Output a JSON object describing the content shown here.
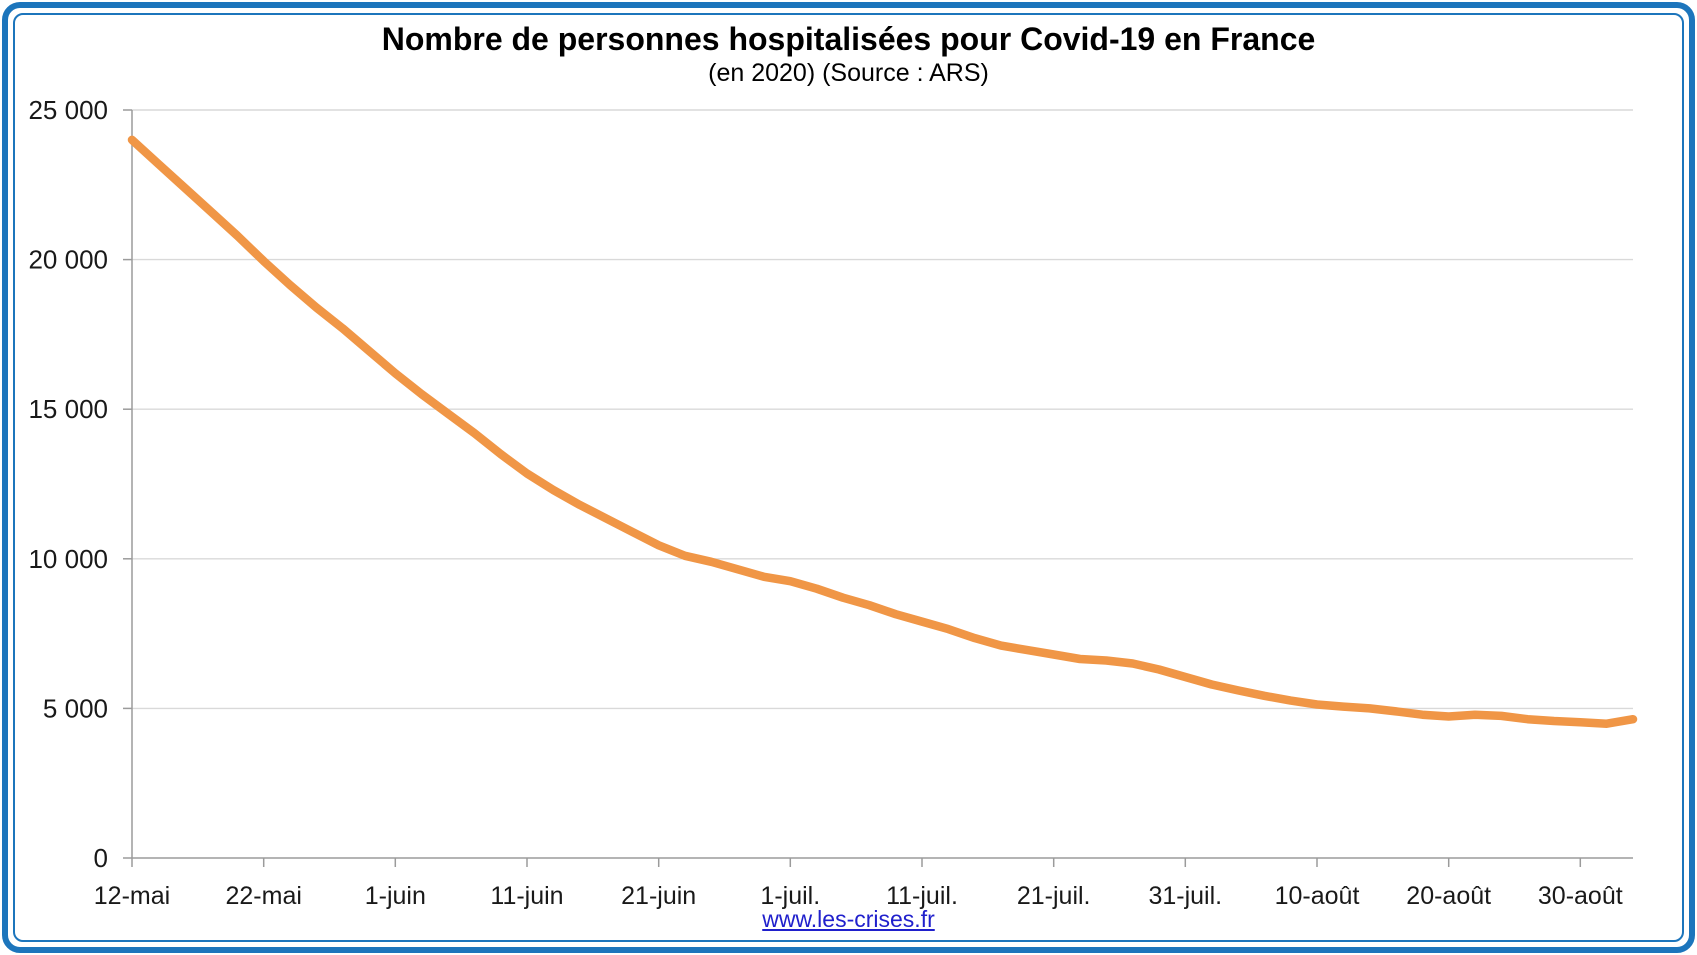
{
  "frame": {
    "border_color": "#1C75BC",
    "background": "#FFFFFF"
  },
  "header": {
    "title": "Nombre de personnes hospitalisées pour Covid-19 en France",
    "subtitle": "(en 2020) (Source : ARS)"
  },
  "footer": {
    "link_text": "www.les-crises.fr",
    "link_color": "#2020CC"
  },
  "chart_data": {
    "type": "line",
    "title": "Nombre de personnes hospitalisées pour Covid-19 en France",
    "subtitle": "(en 2020) (Source : ARS)",
    "legend": "none",
    "grid": "horizontal",
    "colors": {
      "line": "#F09646",
      "gridline": "#D9D9D9",
      "axis": "#9B9B9B",
      "tick_text": "#191919"
    },
    "y_axis": {
      "lim": [
        0,
        25000
      ],
      "ticks": [
        0,
        5000,
        10000,
        15000,
        20000,
        25000
      ],
      "tick_labels": [
        "0",
        "5 000",
        "10 000",
        "15 000",
        "20 000",
        "25 000"
      ]
    },
    "x_axis": {
      "range_days": [
        0,
        114
      ],
      "start_date": "12-mai",
      "tick_days": [
        0,
        10,
        20,
        30,
        40,
        50,
        60,
        70,
        80,
        90,
        100,
        110
      ],
      "tick_labels": [
        "12-mai",
        "22-mai",
        "1-juin",
        "11-juin",
        "21-juin",
        "1-juil.",
        "11-juil.",
        "21-juil.",
        "31-juil.",
        "10-août",
        "20-août",
        "30-août"
      ]
    },
    "series": [
      {
        "color": "#F09646",
        "points_day_value": [
          [
            0,
            24000
          ],
          [
            2,
            23200
          ],
          [
            4,
            22400
          ],
          [
            6,
            21600
          ],
          [
            8,
            20800
          ],
          [
            10,
            19950
          ],
          [
            12,
            19150
          ],
          [
            14,
            18400
          ],
          [
            16,
            17700
          ],
          [
            18,
            16950
          ],
          [
            20,
            16200
          ],
          [
            22,
            15500
          ],
          [
            24,
            14850
          ],
          [
            26,
            14200
          ],
          [
            28,
            13500
          ],
          [
            30,
            12850
          ],
          [
            32,
            12300
          ],
          [
            34,
            11800
          ],
          [
            36,
            11350
          ],
          [
            38,
            10900
          ],
          [
            40,
            10450
          ],
          [
            42,
            10100
          ],
          [
            44,
            9900
          ],
          [
            46,
            9650
          ],
          [
            48,
            9400
          ],
          [
            50,
            9250
          ],
          [
            52,
            9000
          ],
          [
            54,
            8700
          ],
          [
            56,
            8450
          ],
          [
            58,
            8150
          ],
          [
            60,
            7900
          ],
          [
            62,
            7650
          ],
          [
            64,
            7350
          ],
          [
            66,
            7100
          ],
          [
            68,
            6950
          ],
          [
            70,
            6800
          ],
          [
            72,
            6650
          ],
          [
            74,
            6600
          ],
          [
            76,
            6500
          ],
          [
            78,
            6300
          ],
          [
            80,
            6050
          ],
          [
            82,
            5800
          ],
          [
            84,
            5600
          ],
          [
            86,
            5420
          ],
          [
            88,
            5260
          ],
          [
            90,
            5130
          ],
          [
            92,
            5060
          ],
          [
            94,
            5000
          ],
          [
            96,
            4900
          ],
          [
            98,
            4790
          ],
          [
            100,
            4730
          ],
          [
            102,
            4790
          ],
          [
            104,
            4750
          ],
          [
            106,
            4640
          ],
          [
            108,
            4580
          ],
          [
            110,
            4540
          ],
          [
            112,
            4490
          ],
          [
            114,
            4640
          ]
        ]
      }
    ]
  }
}
